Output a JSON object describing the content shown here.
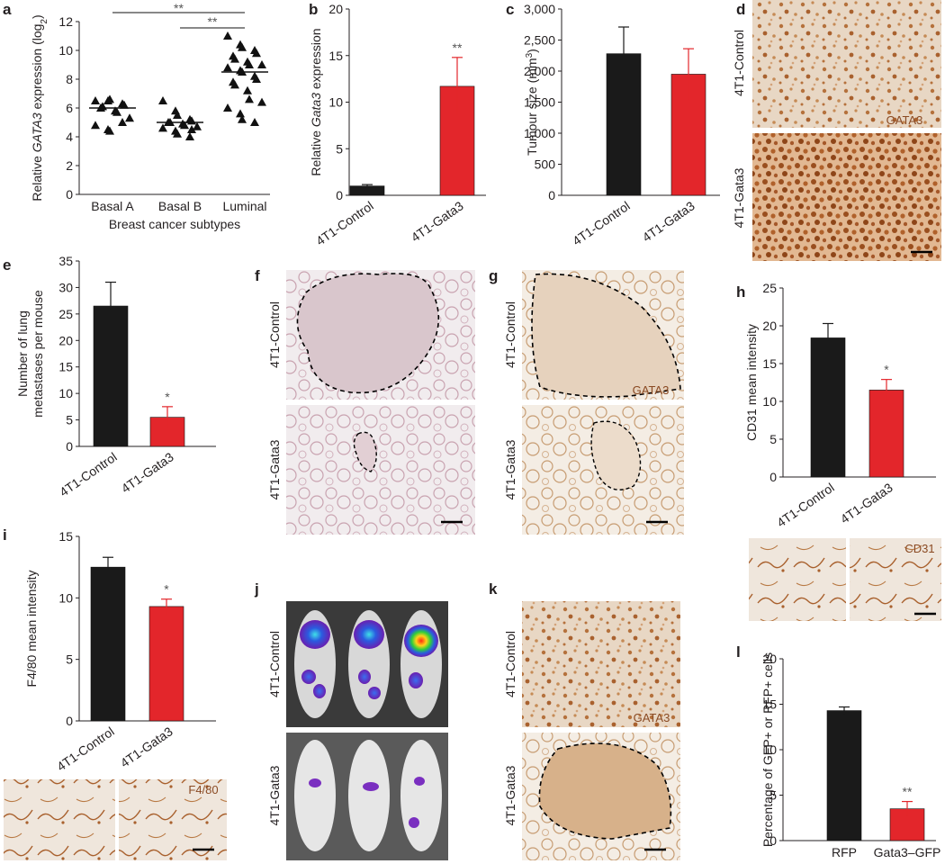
{
  "colors": {
    "control": "#1a1a1a",
    "gata3": "#e3262b",
    "ink": "#231f20",
    "stain": "#8a4a23"
  },
  "chart_data": [
    {
      "id": "a",
      "type": "scatter",
      "categories": [
        "Basal A",
        "Basal B",
        "Luminal"
      ],
      "xlabel": "Breast cancer subtypes",
      "ylabel_pre": "Relative ",
      "ylabel_it": "GATA3",
      "ylabel_mid": " expression (log",
      "ylabel_sub": "2",
      "ylabel_post": ")",
      "ylim": [
        0,
        12
      ],
      "yticks": [
        "0",
        "2",
        "4",
        "6",
        "8",
        "10",
        "12"
      ],
      "means": [
        6.0,
        5.0,
        8.5
      ],
      "points": [
        [
          6.5,
          6.5,
          6.6,
          6.3,
          6.2,
          6.0,
          6.1,
          5.8,
          5.7,
          5.3,
          4.8,
          4.5,
          4.4,
          5.0
        ],
        [
          6.5,
          5.8,
          5.5,
          5.2,
          5.1,
          5.0,
          5.0,
          4.9,
          4.8,
          4.7,
          4.6,
          4.4,
          4.2,
          4.0,
          4.5
        ],
        [
          11.0,
          10.4,
          10.2,
          10.0,
          9.8,
          9.6,
          9.4,
          9.2,
          9.0,
          9.0,
          8.8,
          8.6,
          8.5,
          8.2,
          8.0,
          7.8,
          7.6,
          7.2,
          6.6,
          6.4,
          6.0,
          5.6,
          5.2,
          5.0
        ]
      ],
      "sig_labels": [
        "**",
        "**"
      ]
    },
    {
      "id": "b",
      "type": "bar",
      "categories": [
        "4T1-Control",
        "4T1-Gata3"
      ],
      "values": [
        1.0,
        11.7
      ],
      "errors": [
        0.15,
        3.1
      ],
      "ylabel_pre": "Relative ",
      "ylabel_it": "Gata3",
      "ylabel_post": " expression",
      "ylim": [
        0,
        20
      ],
      "yticks": [
        "0",
        "5",
        "10",
        "15",
        "20"
      ],
      "sig": [
        "",
        "**"
      ]
    },
    {
      "id": "c",
      "type": "bar",
      "categories": [
        "4T1-Control",
        "4T1-Gata3"
      ],
      "values": [
        2280,
        1950
      ],
      "errors": [
        430,
        410
      ],
      "ylabel_pre": "Tumour size (mm",
      "ylabel_sup": "3",
      "ylabel_post": ")",
      "ylim": [
        0,
        3000
      ],
      "yticks": [
        "0",
        "500",
        "1,000",
        "1,500",
        "2,000",
        "2,500",
        "3,000"
      ],
      "sig": [
        "",
        ""
      ]
    },
    {
      "id": "e",
      "type": "bar",
      "categories": [
        "4T1-Control",
        "4T1-Gata3"
      ],
      "values": [
        26.5,
        5.5
      ],
      "errors": [
        4.5,
        2.0
      ],
      "ylabel": [
        "Number of lung",
        "metastases per mouse"
      ],
      "ylim": [
        0,
        35
      ],
      "yticks": [
        "0",
        "5",
        "10",
        "15",
        "20",
        "25",
        "30",
        "35"
      ],
      "sig": [
        "",
        "*"
      ]
    },
    {
      "id": "h",
      "type": "bar",
      "categories": [
        "4T1-Control",
        "4T1-Gata3"
      ],
      "values": [
        18.4,
        11.5
      ],
      "errors": [
        1.9,
        1.4
      ],
      "ylabel": "CD31 mean intensity",
      "ylim": [
        0,
        25
      ],
      "yticks": [
        "0",
        "5",
        "10",
        "15",
        "20",
        "25"
      ],
      "sig": [
        "",
        "*"
      ]
    },
    {
      "id": "i",
      "type": "bar",
      "categories": [
        "4T1-Control",
        "4T1-Gata3"
      ],
      "values": [
        12.5,
        9.3
      ],
      "errors": [
        0.8,
        0.6
      ],
      "ylabel": "F4/80 mean intensity",
      "ylim": [
        0,
        15
      ],
      "yticks": [
        "0",
        "5",
        "10",
        "15"
      ],
      "sig": [
        "",
        "*"
      ]
    },
    {
      "id": "l",
      "type": "bar",
      "categories": [
        "RFP",
        "Gata3–GFP"
      ],
      "values": [
        14.3,
        3.5
      ],
      "errors": [
        0.4,
        0.8
      ],
      "ylabel": "Percentage of GFP+ or RFP+ cells",
      "ylim": [
        0,
        20
      ],
      "yticks": [
        "0",
        "5",
        "10",
        "15",
        "20"
      ],
      "sig": [
        "",
        "**"
      ]
    }
  ],
  "panels": {
    "d": {
      "letter": "d",
      "rows": [
        "4T1-Control",
        "4T1-Gata3"
      ],
      "stain": "GATA3"
    },
    "f": {
      "letter": "f",
      "rows": [
        "4T1-Control",
        "4T1-Gata3"
      ]
    },
    "g": {
      "letter": "g",
      "rows": [
        "4T1-Control",
        "4T1-Gata3"
      ],
      "stain": "GATA3"
    },
    "h_img": {
      "stain": "CD31"
    },
    "i_img": {
      "stain": "F4/80"
    },
    "j": {
      "letter": "j",
      "rows": [
        "4T1-Control",
        "4T1-Gata3"
      ]
    },
    "k": {
      "letter": "k",
      "rows": [
        "4T1-Control",
        "4T1-Gata3"
      ],
      "stain": "GATA3"
    },
    "letters": {
      "a": "a",
      "b": "b",
      "c": "c",
      "e": "e",
      "h": "h",
      "i": "i",
      "l": "l"
    }
  }
}
